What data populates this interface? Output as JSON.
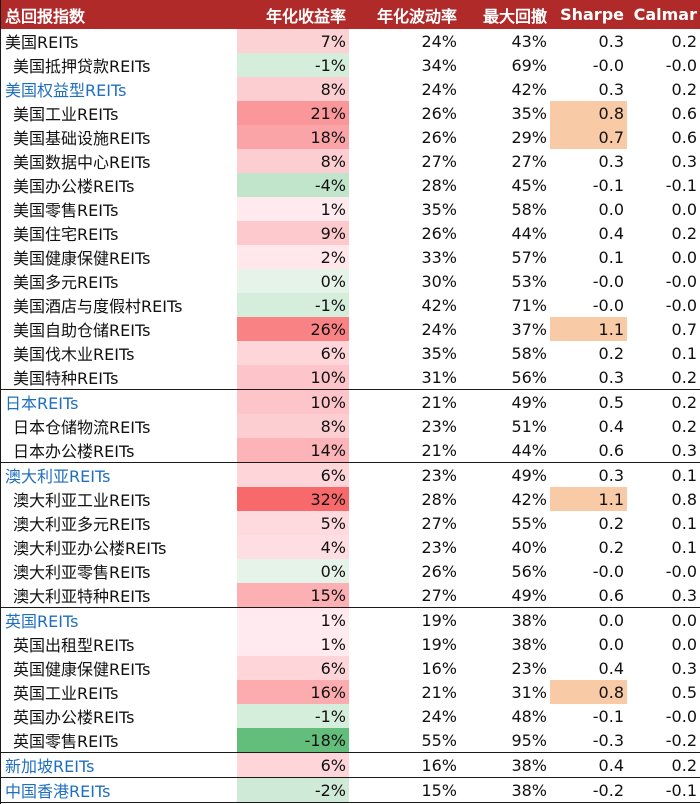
{
  "header": {
    "name": "总回报指数",
    "ret": "年化收益率",
    "vol": "年化波动率",
    "dd": "最大回撤",
    "sharpe": "Sharpe",
    "calmar": "Calmar"
  },
  "colors": {
    "header_bg": "#b02a2a",
    "group_text": "#1f6fc0",
    "sharpe_highlight": "#f8cba6",
    "positive_scale": "#f8696b",
    "negative_scale": "#63be7b"
  },
  "rows": [
    {
      "name": "美国REITs",
      "ret": "7%",
      "vol": "24%",
      "dd": "43%",
      "sharpe": "0.3",
      "calmar": "0.2",
      "level": "top",
      "ret_value": 7
    },
    {
      "name": "美国抵押贷款REITs",
      "ret": "-1%",
      "vol": "34%",
      "dd": "69%",
      "sharpe": "-0.0",
      "calmar": "-0.0",
      "level": "child",
      "ret_value": -1
    },
    {
      "name": "美国权益型REITs",
      "ret": "8%",
      "vol": "24%",
      "dd": "42%",
      "sharpe": "0.3",
      "calmar": "0.2",
      "level": "group",
      "ret_value": 8
    },
    {
      "name": "美国工业REITs",
      "ret": "21%",
      "vol": "26%",
      "dd": "35%",
      "sharpe": "0.8",
      "calmar": "0.6",
      "level": "child",
      "ret_value": 21,
      "sharpe_hl": true
    },
    {
      "name": "美国基础设施REITs",
      "ret": "18%",
      "vol": "26%",
      "dd": "29%",
      "sharpe": "0.7",
      "calmar": "0.6",
      "level": "child",
      "ret_value": 18,
      "sharpe_hl": true
    },
    {
      "name": "美国数据中心REITs",
      "ret": "8%",
      "vol": "27%",
      "dd": "27%",
      "sharpe": "0.3",
      "calmar": "0.3",
      "level": "child",
      "ret_value": 8
    },
    {
      "name": "美国办公楼REITs",
      "ret": "-4%",
      "vol": "28%",
      "dd": "45%",
      "sharpe": "-0.1",
      "calmar": "-0.1",
      "level": "child",
      "ret_value": -4
    },
    {
      "name": "美国零售REITs",
      "ret": "1%",
      "vol": "35%",
      "dd": "58%",
      "sharpe": "0.0",
      "calmar": "0.0",
      "level": "child",
      "ret_value": 1
    },
    {
      "name": "美国住宅REITs",
      "ret": "9%",
      "vol": "26%",
      "dd": "44%",
      "sharpe": "0.4",
      "calmar": "0.2",
      "level": "child",
      "ret_value": 9
    },
    {
      "name": "美国健康保健REITs",
      "ret": "2%",
      "vol": "33%",
      "dd": "57%",
      "sharpe": "0.1",
      "calmar": "0.0",
      "level": "child",
      "ret_value": 2
    },
    {
      "name": "美国多元REITs",
      "ret": "0%",
      "vol": "30%",
      "dd": "53%",
      "sharpe": "-0.0",
      "calmar": "-0.0",
      "level": "child",
      "ret_value": 0
    },
    {
      "name": "美国酒店与度假村REITs",
      "ret": "-1%",
      "vol": "42%",
      "dd": "71%",
      "sharpe": "-0.0",
      "calmar": "-0.0",
      "level": "child",
      "ret_value": -1
    },
    {
      "name": "美国自助仓储REITs",
      "ret": "26%",
      "vol": "24%",
      "dd": "37%",
      "sharpe": "1.1",
      "calmar": "0.7",
      "level": "child",
      "ret_value": 26,
      "sharpe_hl": true
    },
    {
      "name": "美国伐木业REITs",
      "ret": "6%",
      "vol": "35%",
      "dd": "58%",
      "sharpe": "0.2",
      "calmar": "0.1",
      "level": "child",
      "ret_value": 6
    },
    {
      "name": "美国特种REITs",
      "ret": "10%",
      "vol": "31%",
      "dd": "56%",
      "sharpe": "0.3",
      "calmar": "0.2",
      "level": "child",
      "ret_value": 10
    },
    {
      "name": "日本REITs",
      "ret": "10%",
      "vol": "21%",
      "dd": "49%",
      "sharpe": "0.5",
      "calmar": "0.2",
      "level": "group",
      "ret_value": 10,
      "sep": true
    },
    {
      "name": "日本仓储物流REITs",
      "ret": "8%",
      "vol": "23%",
      "dd": "51%",
      "sharpe": "0.4",
      "calmar": "0.2",
      "level": "child",
      "ret_value": 8
    },
    {
      "name": "日本办公楼REITs",
      "ret": "14%",
      "vol": "21%",
      "dd": "44%",
      "sharpe": "0.6",
      "calmar": "0.3",
      "level": "child",
      "ret_value": 14
    },
    {
      "name": "澳大利亚REITs",
      "ret": "6%",
      "vol": "23%",
      "dd": "49%",
      "sharpe": "0.3",
      "calmar": "0.1",
      "level": "group",
      "ret_value": 6,
      "sep": true
    },
    {
      "name": "澳大利亚工业REITs",
      "ret": "32%",
      "vol": "28%",
      "dd": "42%",
      "sharpe": "1.1",
      "calmar": "0.8",
      "level": "child",
      "ret_value": 32,
      "sharpe_hl": true
    },
    {
      "name": "澳大利亚多元REITs",
      "ret": "5%",
      "vol": "27%",
      "dd": "55%",
      "sharpe": "0.2",
      "calmar": "0.1",
      "level": "child",
      "ret_value": 5
    },
    {
      "name": "澳大利亚办公楼REITs",
      "ret": "4%",
      "vol": "23%",
      "dd": "40%",
      "sharpe": "0.2",
      "calmar": "0.1",
      "level": "child",
      "ret_value": 4
    },
    {
      "name": "澳大利亚零售REITs",
      "ret": "0%",
      "vol": "26%",
      "dd": "56%",
      "sharpe": "-0.0",
      "calmar": "-0.0",
      "level": "child",
      "ret_value": 0
    },
    {
      "name": "澳大利亚特种REITs",
      "ret": "15%",
      "vol": "27%",
      "dd": "49%",
      "sharpe": "0.6",
      "calmar": "0.3",
      "level": "child",
      "ret_value": 15
    },
    {
      "name": "英国REITs",
      "ret": "1%",
      "vol": "19%",
      "dd": "38%",
      "sharpe": "0.0",
      "calmar": "0.0",
      "level": "group",
      "ret_value": 1,
      "sep": true
    },
    {
      "name": "英国出租型REITs",
      "ret": "1%",
      "vol": "19%",
      "dd": "38%",
      "sharpe": "0.0",
      "calmar": "0.0",
      "level": "child",
      "ret_value": 1
    },
    {
      "name": "英国健康保健REITs",
      "ret": "6%",
      "vol": "16%",
      "dd": "23%",
      "sharpe": "0.4",
      "calmar": "0.3",
      "level": "child",
      "ret_value": 6
    },
    {
      "name": "英国工业REITs",
      "ret": "16%",
      "vol": "21%",
      "dd": "31%",
      "sharpe": "0.8",
      "calmar": "0.5",
      "level": "child",
      "ret_value": 16,
      "sharpe_hl": true
    },
    {
      "name": "英国办公楼REITs",
      "ret": "-1%",
      "vol": "24%",
      "dd": "48%",
      "sharpe": "-0.1",
      "calmar": "-0.0",
      "level": "child",
      "ret_value": -1
    },
    {
      "name": "英国零售REITs",
      "ret": "-18%",
      "vol": "55%",
      "dd": "95%",
      "sharpe": "-0.3",
      "calmar": "-0.2",
      "level": "child",
      "ret_value": -18
    },
    {
      "name": "新加坡REITs",
      "ret": "6%",
      "vol": "16%",
      "dd": "38%",
      "sharpe": "0.4",
      "calmar": "0.2",
      "level": "group",
      "ret_value": 6,
      "sep": true
    },
    {
      "name": "中国香港REITs",
      "ret": "-2%",
      "vol": "15%",
      "dd": "38%",
      "sharpe": "-0.2",
      "calmar": "-0.1",
      "level": "group",
      "ret_value": -2,
      "sep": true,
      "last": true
    }
  ]
}
